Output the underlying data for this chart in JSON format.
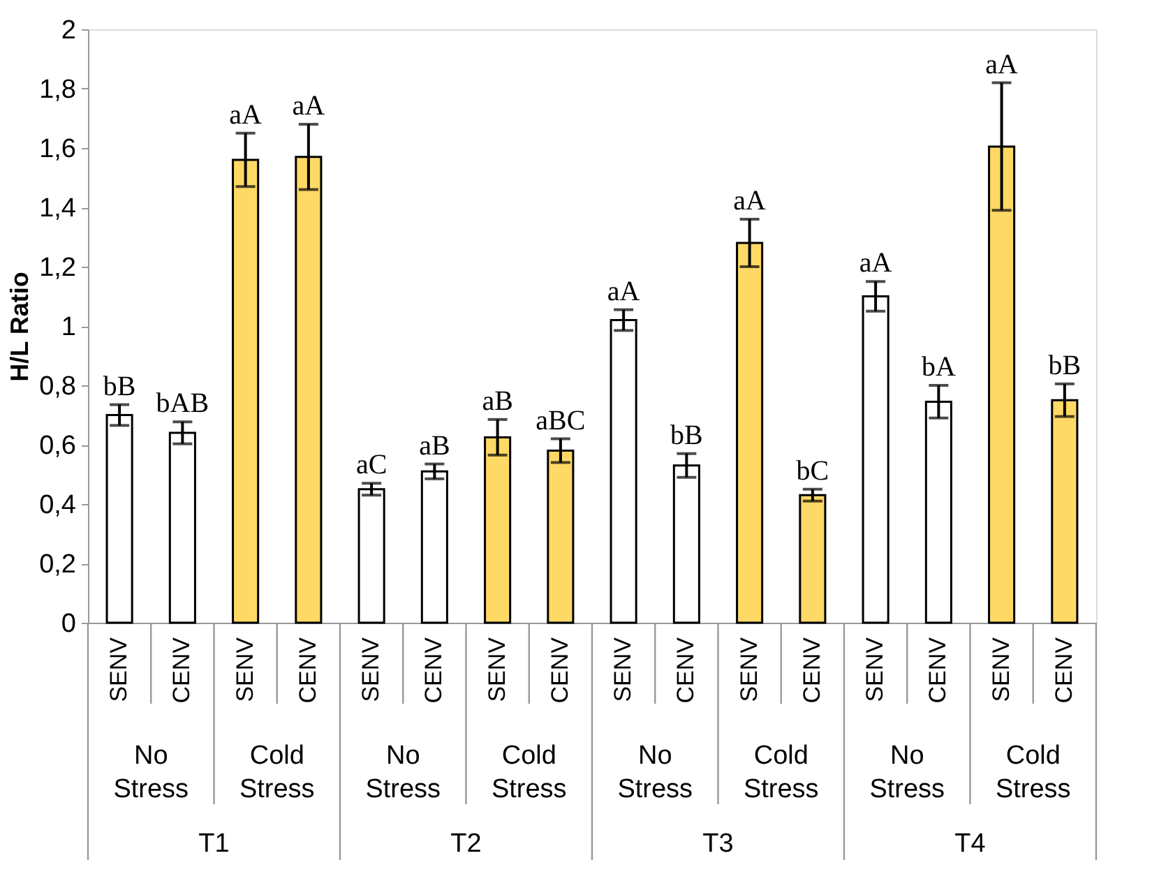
{
  "chart_data": {
    "type": "bar",
    "ylabel": "H/L Ratio",
    "categories": [
      "SENV",
      "CENV",
      "SENV",
      "CENV",
      "SENV",
      "CENV",
      "SENV",
      "CENV",
      "SENV",
      "CENV",
      "SENV",
      "CENV",
      "SENV",
      "CENV",
      "SENV",
      "CENV"
    ],
    "values": [
      0.7,
      0.64,
      1.56,
      1.57,
      0.45,
      0.51,
      0.625,
      0.58,
      1.02,
      0.53,
      1.28,
      0.43,
      1.1,
      0.745,
      1.605,
      0.75
    ],
    "errors": [
      0.035,
      0.037,
      0.09,
      0.11,
      0.02,
      0.025,
      0.06,
      0.04,
      0.035,
      0.04,
      0.08,
      0.02,
      0.05,
      0.055,
      0.215,
      0.055
    ],
    "colors": [
      "#ffffff",
      "#ffffff",
      "#ffd966",
      "#ffd966",
      "#ffffff",
      "#ffffff",
      "#ffd966",
      "#ffd966",
      "#ffffff",
      "#ffffff",
      "#ffd966",
      "#ffd966",
      "#ffffff",
      "#ffffff",
      "#ffd966",
      "#ffd966"
    ],
    "value_labels": [
      "bB",
      "bAB",
      "aA",
      "aA",
      "aC",
      "aB",
      "aB",
      "aBC",
      "aA",
      "bB",
      "aA",
      "bC",
      "aA",
      "bA",
      "aA",
      "bB"
    ],
    "annotations": [
      "No Stress",
      "Cold Stress",
      "No Stress",
      "Cold Stress",
      "No Stress",
      "Cold Stress",
      "No Stress",
      "Cold Stress",
      "T1",
      "T2",
      "T3",
      "T4"
    ],
    "ylim": [
      0,
      2
    ],
    "yticks": [
      0,
      {
        "value": 0.2,
        "label": "0,2"
      },
      {
        "value": 0.4,
        "label": "0,4"
      },
      {
        "value": 0.6,
        "label": "0,6"
      },
      {
        "value": 0.8,
        "label": "0,8"
      },
      1,
      {
        "value": 1.2,
        "label": "1,2"
      },
      {
        "value": 1.4,
        "label": "1,4"
      },
      {
        "value": 1.6,
        "label": "1,6"
      },
      {
        "value": 1.8,
        "label": "1,8"
      },
      2
    ],
    "grid": false
  }
}
